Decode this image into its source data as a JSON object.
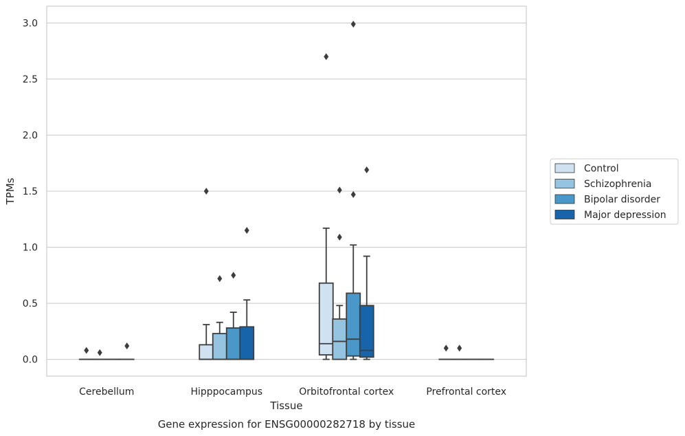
{
  "caption": "Gene expression for ENSG00000282718 by tissue",
  "chart_data": {
    "type": "box",
    "xlabel": "Tissue",
    "ylabel": "TPMs",
    "ylim": [
      -0.15,
      3.15
    ],
    "yticks": [
      "0.0",
      "0.5",
      "1.0",
      "1.5",
      "2.0",
      "2.5",
      "3.0"
    ],
    "grid": "horizontal",
    "legend_position": "right",
    "categories": [
      "Cerebellum",
      "Hipppocampus",
      "Orbitofrontal cortex",
      "Prefrontal cortex"
    ],
    "series": [
      {
        "name": "Control",
        "color": "#d0e1f2",
        "boxes": [
          {
            "whislo": 0,
            "q1": 0,
            "med": 0,
            "q3": 0,
            "whishi": 0,
            "fliers": [
              0.08
            ]
          },
          {
            "whislo": 0,
            "q1": 0,
            "med": 0,
            "q3": 0.13,
            "whishi": 0.31,
            "fliers": [
              1.5
            ]
          },
          {
            "whislo": 0,
            "q1": 0.04,
            "med": 0.14,
            "q3": 0.68,
            "whishi": 1.17,
            "fliers": [
              2.7
            ]
          },
          {
            "whislo": 0,
            "q1": 0,
            "med": 0,
            "q3": 0,
            "whishi": 0,
            "fliers": [
              0.1
            ]
          }
        ]
      },
      {
        "name": "Schizophrenia",
        "color": "#94c4df",
        "boxes": [
          {
            "whislo": 0,
            "q1": 0,
            "med": 0,
            "q3": 0,
            "whishi": 0,
            "fliers": [
              0.06
            ]
          },
          {
            "whislo": 0,
            "q1": 0,
            "med": 0,
            "q3": 0.23,
            "whishi": 0.33,
            "fliers": [
              0.72
            ]
          },
          {
            "whislo": 0,
            "q1": 0,
            "med": 0.16,
            "q3": 0.36,
            "whishi": 0.48,
            "fliers": [
              1.09,
              1.51
            ]
          },
          {
            "whislo": 0,
            "q1": 0,
            "med": 0,
            "q3": 0,
            "whishi": 0,
            "fliers": [
              0.1
            ]
          }
        ]
      },
      {
        "name": "Bipolar disorder",
        "color": "#4a98c9",
        "boxes": [
          {
            "whislo": 0,
            "q1": 0,
            "med": 0,
            "q3": 0,
            "whishi": 0,
            "fliers": []
          },
          {
            "whislo": 0,
            "q1": 0,
            "med": 0,
            "q3": 0.28,
            "whishi": 0.42,
            "fliers": [
              0.75
            ]
          },
          {
            "whislo": 0,
            "q1": 0.03,
            "med": 0.18,
            "q3": 0.59,
            "whishi": 1.02,
            "fliers": [
              1.47,
              2.99
            ]
          },
          {
            "whislo": 0,
            "q1": 0,
            "med": 0,
            "q3": 0,
            "whishi": 0,
            "fliers": []
          }
        ]
      },
      {
        "name": "Major depression",
        "color": "#1764ab",
        "boxes": [
          {
            "whislo": 0,
            "q1": 0,
            "med": 0,
            "q3": 0,
            "whishi": 0,
            "fliers": [
              0.12
            ]
          },
          {
            "whislo": 0,
            "q1": 0,
            "med": 0,
            "q3": 0.29,
            "whishi": 0.53,
            "fliers": [
              1.15
            ]
          },
          {
            "whislo": 0,
            "q1": 0.02,
            "med": 0.08,
            "q3": 0.48,
            "whishi": 0.92,
            "fliers": [
              1.69
            ]
          },
          {
            "whislo": 0,
            "q1": 0,
            "med": 0,
            "q3": 0,
            "whishi": 0,
            "fliers": []
          }
        ]
      }
    ]
  }
}
